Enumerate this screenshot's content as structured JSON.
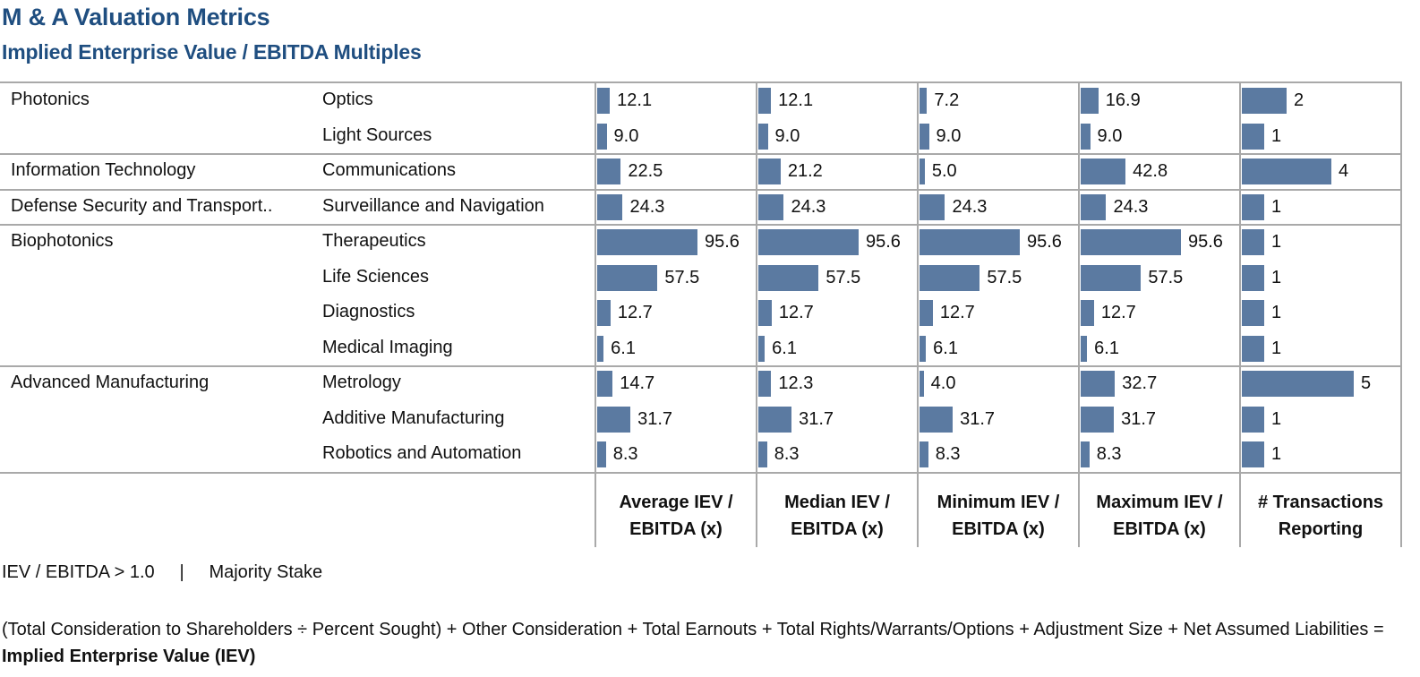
{
  "header": {
    "title": "M & A Valuation Metrics",
    "subtitle": "Implied Enterprise Value / EBITDA Multiples"
  },
  "colors": {
    "title": "#1f4e80",
    "bar": "#5b7aa1",
    "grid": "#a9a9a9"
  },
  "chart_data": {
    "type": "bar",
    "title": "M & A Valuation Metrics",
    "subtitle": "Implied Enterprise Value / EBITDA Multiples",
    "orientation": "horizontal",
    "groups": [
      {
        "name": "Photonics",
        "subsectors": [
          "Optics",
          "Light Sources"
        ]
      },
      {
        "name": "Information Technology",
        "subsectors": [
          "Communications"
        ]
      },
      {
        "name": "Defense Security and Transport..",
        "subsectors": [
          "Surveillance and Navigation"
        ]
      },
      {
        "name": "Biophotonics",
        "subsectors": [
          "Therapeutics",
          "Life Sciences",
          "Diagnostics",
          "Medical Imaging"
        ]
      },
      {
        "name": "Advanced Manufacturing",
        "subsectors": [
          "Metrology",
          "Additive Manufacturing",
          "Robotics and Automation"
        ]
      }
    ],
    "categories": [
      "Optics",
      "Light Sources",
      "Communications",
      "Surveillance and Navigation",
      "Therapeutics",
      "Life Sciences",
      "Diagnostics",
      "Medical Imaging",
      "Metrology",
      "Additive Manufacturing",
      "Robotics and Automation"
    ],
    "series": [
      {
        "name": "Average IEV / EBITDA (x)",
        "values": [
          12.1,
          9.0,
          22.5,
          24.3,
          95.6,
          57.5,
          12.7,
          6.1,
          14.7,
          31.7,
          8.3
        ],
        "labels": [
          "12.1",
          "9.0",
          "22.5",
          "24.3",
          "95.6",
          "57.5",
          "12.7",
          "6.1",
          "14.7",
          "31.7",
          "8.3"
        ],
        "max": 95.6
      },
      {
        "name": "Median IEV / EBITDA (x)",
        "values": [
          12.1,
          9.0,
          21.2,
          24.3,
          95.6,
          57.5,
          12.7,
          6.1,
          12.3,
          31.7,
          8.3
        ],
        "labels": [
          "12.1",
          "9.0",
          "21.2",
          "24.3",
          "95.6",
          "57.5",
          "12.7",
          "6.1",
          "12.3",
          "31.7",
          "8.3"
        ],
        "max": 95.6
      },
      {
        "name": "Minimum IEV / EBITDA (x)",
        "values": [
          7.2,
          9.0,
          5.0,
          24.3,
          95.6,
          57.5,
          12.7,
          6.1,
          4.0,
          31.7,
          8.3
        ],
        "labels": [
          "7.2",
          "9.0",
          "5.0",
          "24.3",
          "95.6",
          "57.5",
          "12.7",
          "6.1",
          "4.0",
          "31.7",
          "8.3"
        ],
        "max": 95.6
      },
      {
        "name": "Maximum IEV / EBITDA (x)",
        "values": [
          16.9,
          9.0,
          42.8,
          24.3,
          95.6,
          57.5,
          12.7,
          6.1,
          32.7,
          31.7,
          8.3
        ],
        "labels": [
          "16.9",
          "9.0",
          "42.8",
          "24.3",
          "95.6",
          "57.5",
          "12.7",
          "6.1",
          "32.7",
          "31.7",
          "8.3"
        ],
        "max": 95.6
      },
      {
        "name": "# Transactions Reporting",
        "values": [
          2,
          1,
          4,
          1,
          1,
          1,
          1,
          1,
          5,
          1,
          1
        ],
        "labels": [
          "2",
          "1",
          "4",
          "1",
          "1",
          "1",
          "1",
          "1",
          "5",
          "1",
          "1"
        ],
        "max": 5
      }
    ],
    "column_headers": [
      [
        "Average IEV /",
        "EBITDA (x)"
      ],
      [
        "Median IEV /",
        "EBITDA (x)"
      ],
      [
        "Minimum IEV /",
        "EBITDA (x)"
      ],
      [
        "Maximum IEV /",
        "EBITDA (x)"
      ],
      [
        "# Transactions",
        "Reporting"
      ]
    ],
    "xlabel": "",
    "ylabel": "",
    "grid": true,
    "legend": "none"
  },
  "footer": {
    "filter_left": "IEV / EBITDA > 1.0",
    "filter_sep": "|",
    "filter_right": "Majority Stake",
    "formula_text": "(Total Consideration to Shareholders ÷ Percent Sought) + Other Consideration + Total Earnouts + Total Rights/Warrants/Options + Adjustment Size + Net Assumed Liabilities = ",
    "formula_bold": "Implied Enterprise Value (IEV)"
  }
}
